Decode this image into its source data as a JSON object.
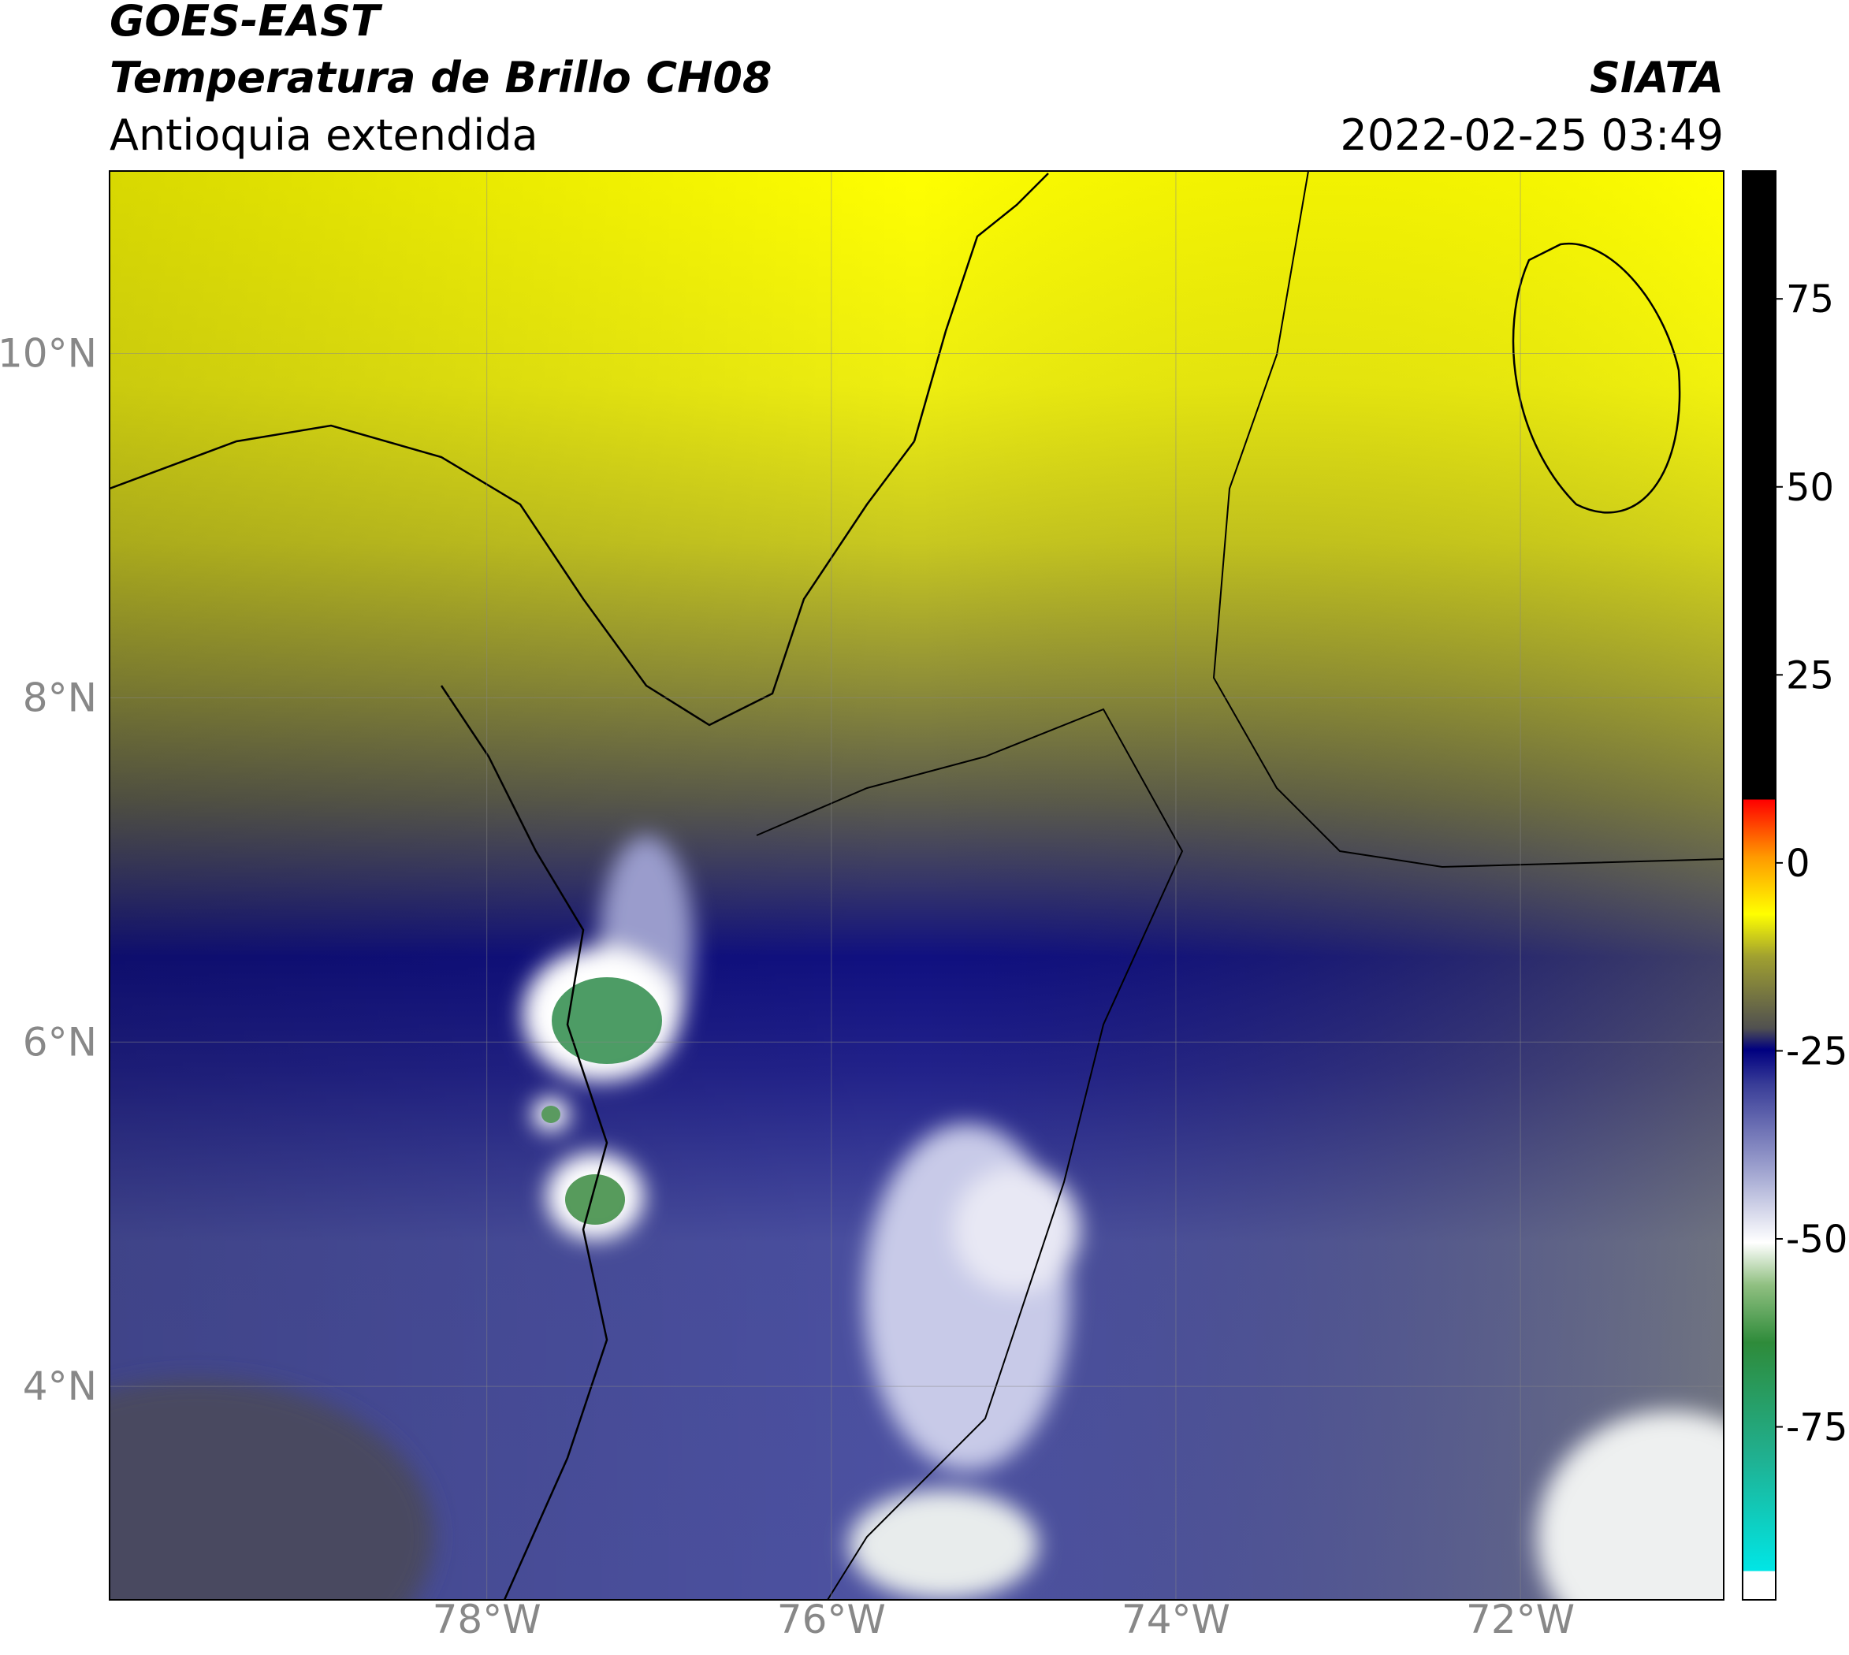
{
  "header": {
    "title": "GOES-EAST",
    "subtitle": "Temperatura de Brillo CH08",
    "region": "Antioquia extendida",
    "source": "SIATA",
    "datetime": "2022-02-25 03:49"
  },
  "chart_data": {
    "type": "map",
    "xlim": [
      -80.19,
      -70.82
    ],
    "ylim": [
      2.76,
      11.06
    ],
    "xticks": [
      {
        "value": -78,
        "label": "78°W"
      },
      {
        "value": -76,
        "label": "76°W"
      },
      {
        "value": -74,
        "label": "74°W"
      },
      {
        "value": -72,
        "label": "72°W"
      }
    ],
    "yticks": [
      {
        "value": 4,
        "label": "4°N"
      },
      {
        "value": 6,
        "label": "6°N"
      },
      {
        "value": 8,
        "label": "8°N"
      },
      {
        "value": 10,
        "label": "10°N"
      }
    ],
    "grid": true,
    "colorbar": {
      "lim": [
        -98,
        92
      ],
      "ticks": [
        -75,
        -50,
        -25,
        0,
        25,
        50,
        75
      ]
    }
  }
}
